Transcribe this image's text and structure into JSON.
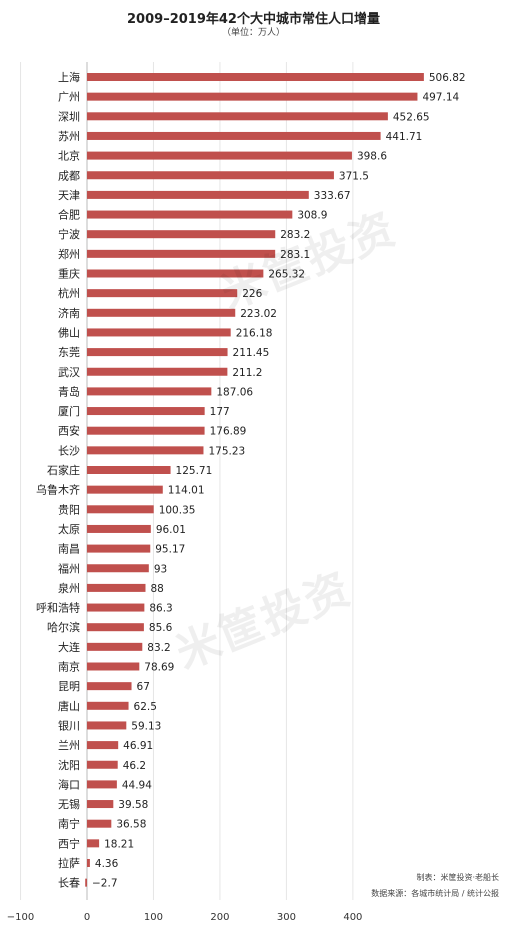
{
  "chart_data": {
    "type": "bar",
    "orientation": "horizontal",
    "title": "2009–2019年42个大中城市常住人口增量",
    "subtitle": "（单位：万人）",
    "categories": [
      "上海",
      "广州",
      "深圳",
      "苏州",
      "北京",
      "成都",
      "天津",
      "合肥",
      "宁波",
      "郑州",
      "重庆",
      "杭州",
      "济南",
      "佛山",
      "东莞",
      "武汉",
      "青岛",
      "厦门",
      "西安",
      "长沙",
      "石家庄",
      "乌鲁木齐",
      "贵阳",
      "太原",
      "南昌",
      "福州",
      "泉州",
      "呼和浩特",
      "哈尔滨",
      "大连",
      "南京",
      "昆明",
      "唐山",
      "银川",
      "兰州",
      "沈阳",
      "海口",
      "无锡",
      "南宁",
      "西宁",
      "拉萨",
      "长春"
    ],
    "values": [
      506.82,
      497.14,
      452.65,
      441.71,
      398.6,
      371.5,
      333.67,
      308.9,
      283.2,
      283.1,
      265.32,
      226,
      223.02,
      216.18,
      211.45,
      211.2,
      187.06,
      177,
      176.89,
      175.23,
      125.71,
      114.01,
      100.35,
      96.01,
      95.17,
      93,
      88,
      86.3,
      85.6,
      83.2,
      78.69,
      67,
      62.5,
      59.13,
      46.91,
      46.2,
      44.94,
      39.58,
      36.58,
      18.21,
      4.36,
      -2.7
    ],
    "value_labels": [
      "506.82",
      "497.14",
      "452.65",
      "441.71",
      "398.6",
      "371.5",
      "333.67",
      "308.9",
      "283.2",
      "283.1",
      "265.32",
      "226",
      "223.02",
      "216.18",
      "211.45",
      "211.2",
      "187.06",
      "177",
      "176.89",
      "175.23",
      "125.71",
      "114.01",
      "100.35",
      "96.01",
      "95.17",
      "93",
      "88",
      "86.3",
      "85.6",
      "83.2",
      "78.69",
      "67",
      "62.5",
      "59.13",
      "46.91",
      "46.2",
      "44.94",
      "39.58",
      "36.58",
      "18.21",
      "4.36",
      "−2.7"
    ],
    "xlim": [
      -100,
      600
    ],
    "xticks": [
      "−100",
      "0",
      "100",
      "200",
      "300",
      "400"
    ],
    "grid": true,
    "bar_color": "#c0504d"
  },
  "credits": {
    "line1": "制表：米筐投资·老船长",
    "line2": "数据来源：各城市统计局 / 统计公报"
  }
}
